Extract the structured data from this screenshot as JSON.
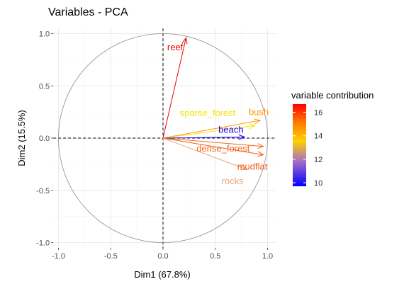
{
  "chart_data": {
    "type": "pca-variable-correlation-circle",
    "title": "Variables - PCA",
    "xlabel": "Dim1 (67.8%)",
    "ylabel": "Dim2 (15.5%)",
    "xlim": [
      -1.05,
      1.08
    ],
    "ylim": [
      -1.05,
      1.05
    ],
    "xticks": [
      -1.0,
      -0.5,
      0.0,
      0.5,
      1.0
    ],
    "xtick_labels": [
      "-1.0",
      "-0.5",
      "0.0",
      "0.5",
      "1.0"
    ],
    "yticks": [
      -1.0,
      -0.5,
      0.0,
      0.5,
      1.0
    ],
    "ytick_labels": [
      "-1.0",
      "-0.5",
      "0.0",
      "0.5",
      "1.0"
    ],
    "grid": true,
    "unit_circle": true,
    "reference_lines": [
      {
        "axis": "x",
        "value": 0,
        "style": "dashed"
      },
      {
        "axis": "y",
        "value": 0,
        "style": "dashed"
      }
    ],
    "variables": [
      {
        "name": "reef",
        "x": 0.22,
        "y": 0.96,
        "contribution": 16.5,
        "color": "#ee0000"
      },
      {
        "name": "bush",
        "x": 0.93,
        "y": 0.17,
        "contribution": 14.8,
        "color": "#ff9900"
      },
      {
        "name": "sparse_forest",
        "x": 0.88,
        "y": 0.12,
        "contribution": 13.8,
        "color": "#f5e600"
      },
      {
        "name": "beach",
        "x": 0.78,
        "y": 0.01,
        "contribution": 9.8,
        "color": "#1c00ff"
      },
      {
        "name": "dense_forest",
        "x": 0.96,
        "y": -0.08,
        "contribution": 15.8,
        "color": "#f26a1b"
      },
      {
        "name": "mudflat",
        "x": 0.96,
        "y": -0.16,
        "contribution": 16.0,
        "color": "#f25a1a"
      },
      {
        "name": "rocks",
        "x": 0.8,
        "y": -0.3,
        "contribution": 11.6,
        "color": "#e8a878"
      }
    ],
    "legend": {
      "title": "variable contribution",
      "placement": "right",
      "range": [
        9.7,
        16.7
      ],
      "ticks": [
        10,
        12,
        14,
        16
      ],
      "tick_labels": [
        "10",
        "12",
        "14",
        "16"
      ],
      "gradient": [
        "#0000ff",
        "#a36cc9",
        "#ffd000",
        "#ff7a00",
        "#ff0000"
      ]
    }
  }
}
